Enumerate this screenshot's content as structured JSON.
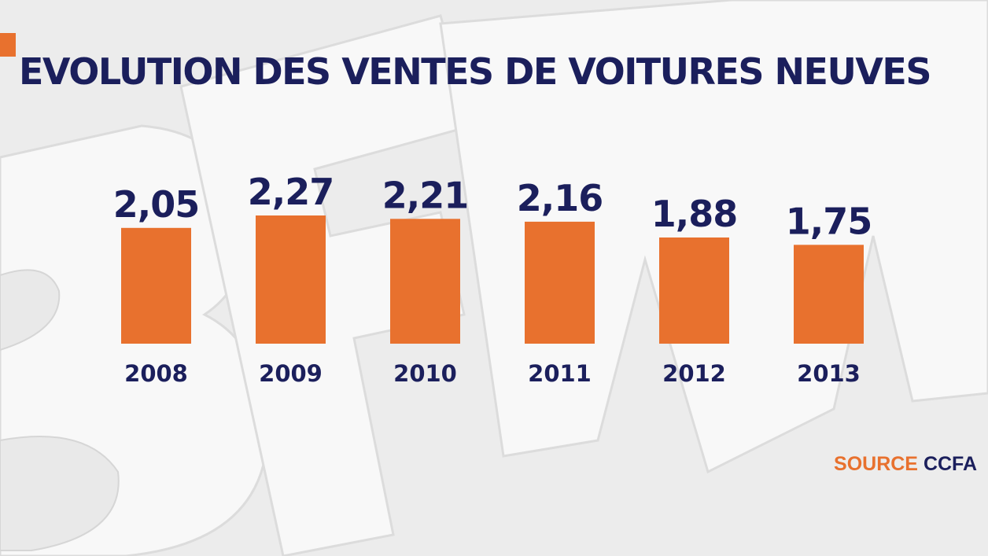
{
  "title": "EVOLUTION DES VENTES DE VOITURES NEUVES",
  "source": {
    "label": "SOURCE",
    "name": "CCFA"
  },
  "watermark": "BFM",
  "colors": {
    "bar": "#e8712e",
    "text": "#1b1f5c",
    "accent": "#e8712e"
  },
  "chart_data": {
    "type": "bar",
    "title": "EVOLUTION DES VENTES DE VOITURES NEUVES",
    "categories": [
      "2008",
      "2009",
      "2010",
      "2011",
      "2012",
      "2013"
    ],
    "values": [
      2.05,
      2.27,
      2.21,
      2.16,
      1.88,
      1.75
    ],
    "value_labels": [
      "2,05",
      "2,27",
      "2,21",
      "2,16",
      "1,88",
      "1,75"
    ],
    "xlabel": "",
    "ylabel": "",
    "ylim": [
      0,
      2.27
    ],
    "grid": false,
    "legend": "none"
  }
}
